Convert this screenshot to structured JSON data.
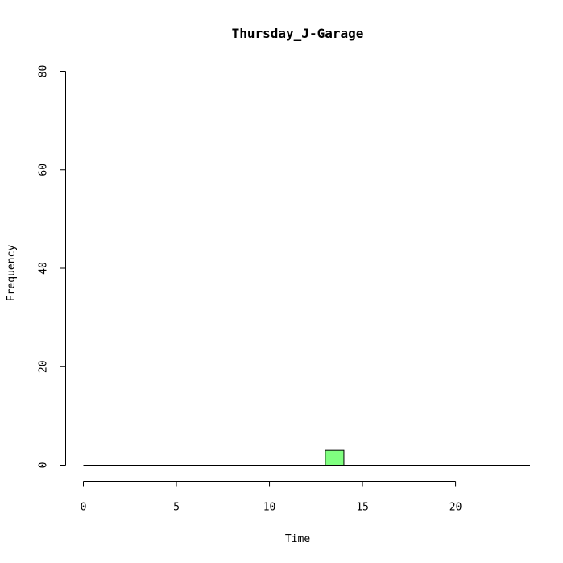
{
  "chart_data": {
    "type": "bar",
    "title": "Thursday_J-Garage",
    "xlabel": "Time",
    "ylabel": "Frequency",
    "xlim": [
      0,
      24
    ],
    "ylim": [
      0,
      80
    ],
    "x_ticks": [
      0,
      5,
      10,
      15,
      20
    ],
    "y_ticks": [
      0,
      20,
      40,
      60,
      80
    ],
    "bins": [
      {
        "start": 13,
        "end": 14,
        "value": 3
      }
    ],
    "bar_color": "#80ff80",
    "grid": false
  }
}
